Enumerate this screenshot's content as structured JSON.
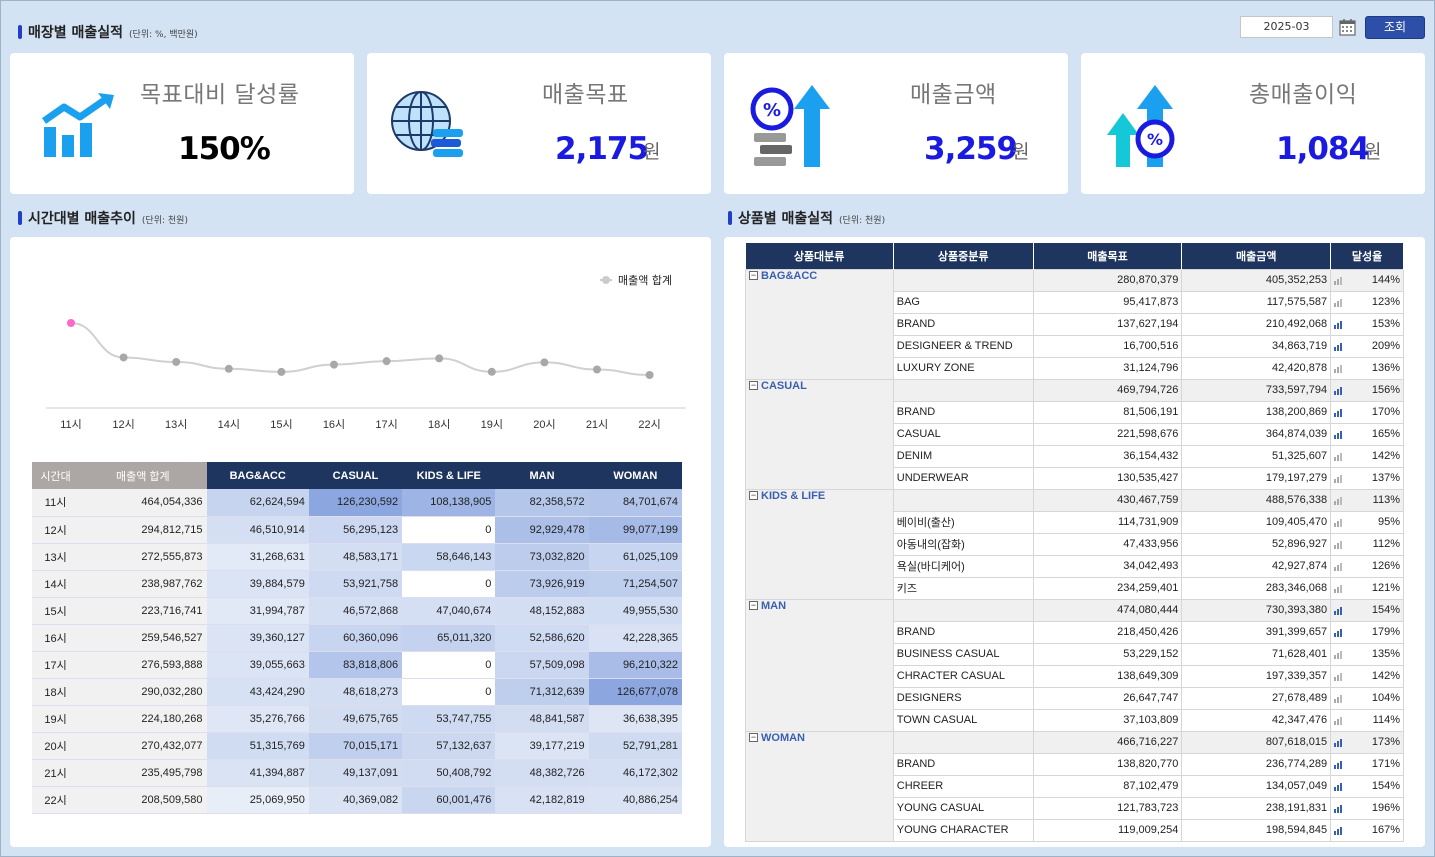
{
  "header": {
    "title": "매장별 매출실적",
    "unit": "(단위: %, 백만원)",
    "date_value": "2025-03",
    "query_label": "조회"
  },
  "kpis": [
    {
      "label": "목표대비 달성률",
      "value": "150%",
      "unit": "",
      "icon": "growth-chart-icon",
      "color": "#000000"
    },
    {
      "label": "매출목표",
      "value": "2,175",
      "unit": "원",
      "icon": "globe-coins-icon",
      "color": "#1a1ae0"
    },
    {
      "label": "매출금액",
      "value": "3,259",
      "unit": "원",
      "icon": "percent-arrow-icon",
      "color": "#1a1ae0"
    },
    {
      "label": "총매출이익",
      "value": "1,084",
      "unit": "원",
      "icon": "profit-arrows-icon",
      "color": "#1a1ae0"
    }
  ],
  "time_section": {
    "title": "시간대별 매출추이",
    "unit": "(단위: 천원)"
  },
  "product_section": {
    "title": "상품별 매출실적",
    "unit": "(단위: 천원)"
  },
  "chart_data": {
    "type": "line",
    "categories": [
      "11시",
      "12시",
      "13시",
      "14시",
      "15시",
      "16시",
      "17시",
      "18시",
      "19시",
      "20시",
      "21시",
      "22시"
    ],
    "series": [
      {
        "name": "매출액 합계",
        "values": [
          464054336,
          294812715,
          272555873,
          238987762,
          223716741,
          259546527,
          276593888,
          290032280,
          224180268,
          270432077,
          235495798,
          208509580
        ]
      }
    ],
    "highlight_color": "#ff66cc",
    "line_color": "#d0d0d0",
    "point_color": "#a8a8a8",
    "legend_position": "top-right",
    "grid": false
  },
  "hourly_table": {
    "headers": [
      "시간대",
      "매출액 합계",
      "BAG&ACC",
      "CASUAL",
      "KIDS & LIFE",
      "MAN",
      "WOMAN"
    ],
    "rows": [
      [
        "11시",
        "464,054,336",
        "62,624,594",
        "126,230,592",
        "108,138,905",
        "82,358,572",
        "84,701,674"
      ],
      [
        "12시",
        "294,812,715",
        "46,510,914",
        "56,295,123",
        "0",
        "92,929,478",
        "99,077,199"
      ],
      [
        "13시",
        "272,555,873",
        "31,268,631",
        "48,583,171",
        "58,646,143",
        "73,032,820",
        "61,025,109"
      ],
      [
        "14시",
        "238,987,762",
        "39,884,579",
        "53,921,758",
        "0",
        "73,926,919",
        "71,254,507"
      ],
      [
        "15시",
        "223,716,741",
        "31,994,787",
        "46,572,868",
        "47,040,674",
        "48,152,883",
        "49,955,530"
      ],
      [
        "16시",
        "259,546,527",
        "39,360,127",
        "60,360,096",
        "65,011,320",
        "52,586,620",
        "42,228,365"
      ],
      [
        "17시",
        "276,593,888",
        "39,055,663",
        "83,818,806",
        "0",
        "57,509,098",
        "96,210,322"
      ],
      [
        "18시",
        "290,032,280",
        "43,424,290",
        "48,618,273",
        "0",
        "71,312,639",
        "126,677,078"
      ],
      [
        "19시",
        "224,180,268",
        "35,276,766",
        "49,675,765",
        "53,747,755",
        "48,841,587",
        "36,638,395"
      ],
      [
        "20시",
        "270,432,077",
        "51,315,769",
        "70,015,171",
        "57,132,637",
        "39,177,219",
        "52,791,281"
      ],
      [
        "21시",
        "235,495,798",
        "41,394,887",
        "49,137,091",
        "50,408,792",
        "48,382,726",
        "46,172,302"
      ],
      [
        "22시",
        "208,509,580",
        "25,069,950",
        "40,369,082",
        "60,001,476",
        "42,182,819",
        "40,886,254"
      ]
    ]
  },
  "product_table": {
    "headers": [
      "상품대분류",
      "상품중분류",
      "매출목표",
      "매출금액",
      "달성율"
    ],
    "groups": [
      {
        "name": "BAG&ACC",
        "target": "280,870,379",
        "sales": "405,352,253",
        "rate": "144%",
        "items": [
          {
            "name": "BAG",
            "target": "95,417,873",
            "sales": "117,575,587",
            "rate": "123%"
          },
          {
            "name": "BRAND",
            "target": "137,627,194",
            "sales": "210,492,068",
            "rate": "153%"
          },
          {
            "name": "DESIGNEER & TREND",
            "target": "16,700,516",
            "sales": "34,863,719",
            "rate": "209%"
          },
          {
            "name": "LUXURY ZONE",
            "target": "31,124,796",
            "sales": "42,420,878",
            "rate": "136%"
          }
        ]
      },
      {
        "name": "CASUAL",
        "target": "469,794,726",
        "sales": "733,597,794",
        "rate": "156%",
        "items": [
          {
            "name": "BRAND",
            "target": "81,506,191",
            "sales": "138,200,869",
            "rate": "170%"
          },
          {
            "name": "CASUAL",
            "target": "221,598,676",
            "sales": "364,874,039",
            "rate": "165%"
          },
          {
            "name": "DENIM",
            "target": "36,154,432",
            "sales": "51,325,607",
            "rate": "142%"
          },
          {
            "name": "UNDERWEAR",
            "target": "130,535,427",
            "sales": "179,197,279",
            "rate": "137%"
          }
        ]
      },
      {
        "name": "KIDS & LIFE",
        "target": "430,467,759",
        "sales": "488,576,338",
        "rate": "113%",
        "items": [
          {
            "name": "베이비(출산)",
            "target": "114,731,909",
            "sales": "109,405,470",
            "rate": "95%"
          },
          {
            "name": "아동내의(잡화)",
            "target": "47,433,956",
            "sales": "52,896,927",
            "rate": "112%"
          },
          {
            "name": "욕실(바디케어)",
            "target": "34,042,493",
            "sales": "42,927,874",
            "rate": "126%"
          },
          {
            "name": "키즈",
            "target": "234,259,401",
            "sales": "283,346,068",
            "rate": "121%"
          }
        ]
      },
      {
        "name": "MAN",
        "target": "474,080,444",
        "sales": "730,393,380",
        "rate": "154%",
        "items": [
          {
            "name": "BRAND",
            "target": "218,450,426",
            "sales": "391,399,657",
            "rate": "179%"
          },
          {
            "name": "BUSINESS CASUAL",
            "target": "53,229,152",
            "sales": "71,628,401",
            "rate": "135%"
          },
          {
            "name": "CHRACTER CASUAL",
            "target": "138,649,309",
            "sales": "197,339,357",
            "rate": "142%"
          },
          {
            "name": "DESIGNERS",
            "target": "26,647,747",
            "sales": "27,678,489",
            "rate": "104%"
          },
          {
            "name": "TOWN CASUAL",
            "target": "37,103,809",
            "sales": "42,347,476",
            "rate": "114%"
          }
        ]
      },
      {
        "name": "WOMAN",
        "target": "466,716,227",
        "sales": "807,618,015",
        "rate": "173%",
        "items": [
          {
            "name": "BRAND",
            "target": "138,820,770",
            "sales": "236,774,289",
            "rate": "171%"
          },
          {
            "name": "CHREER",
            "target": "87,102,479",
            "sales": "134,057,049",
            "rate": "154%"
          },
          {
            "name": "YOUNG CASUAL",
            "target": "121,783,723",
            "sales": "238,191,831",
            "rate": "196%"
          },
          {
            "name": "YOUNG CHARACTER",
            "target": "119,009,254",
            "sales": "198,594,845",
            "rate": "167%"
          }
        ]
      }
    ]
  },
  "colors": {
    "accent": "#1f3fc7",
    "header_dark": "#1e355f",
    "heat_high": "#8ea9e0",
    "heat_low": "#e8eef8",
    "background": "#d3e3f4"
  }
}
